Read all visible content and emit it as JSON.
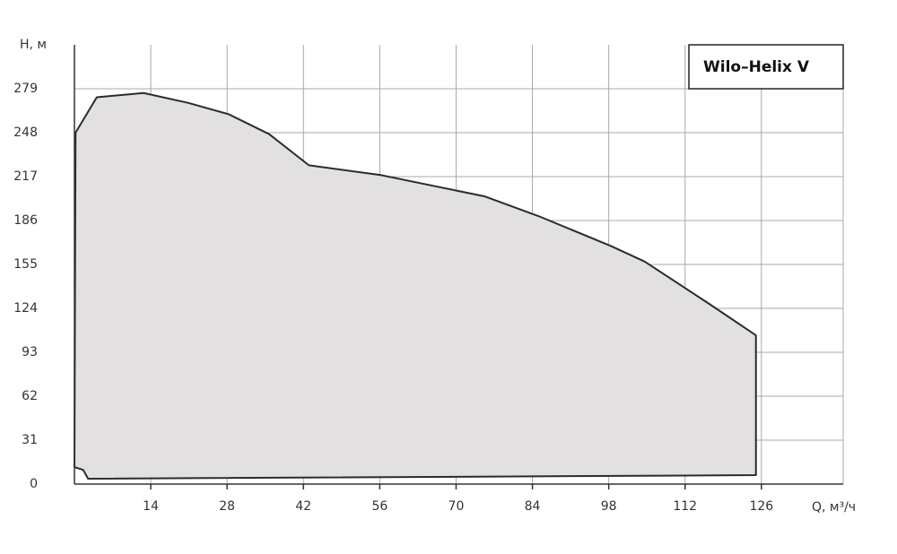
{
  "chart_data": {
    "type": "area",
    "title": "Wilo–Helix V",
    "x_label": "Q, м³/ч",
    "y_label": "H, м",
    "x": [
      0.2,
      4.1,
      12.7,
      20.9,
      28.3,
      35.7,
      43,
      56.3,
      75.3,
      85.2,
      98.4,
      104.6,
      116.5,
      125,
      125,
      2.5,
      1.6,
      0
    ],
    "values": [
      248,
      273,
      276,
      269,
      261,
      247,
      225,
      218,
      203,
      189,
      168,
      157,
      127,
      105,
      6.3,
      3.8,
      10,
      12
    ],
    "color": "#e2e0e1",
    "line_color": "#2b2b2b",
    "xlim": [
      0,
      141
    ],
    "ylim": [
      0,
      310
    ],
    "xticks": [
      14,
      28,
      42,
      56,
      70,
      84,
      98,
      112,
      126
    ],
    "yticks": [
      0,
      31,
      62,
      93,
      124,
      155,
      186,
      217,
      248,
      279
    ],
    "grid": true
  }
}
